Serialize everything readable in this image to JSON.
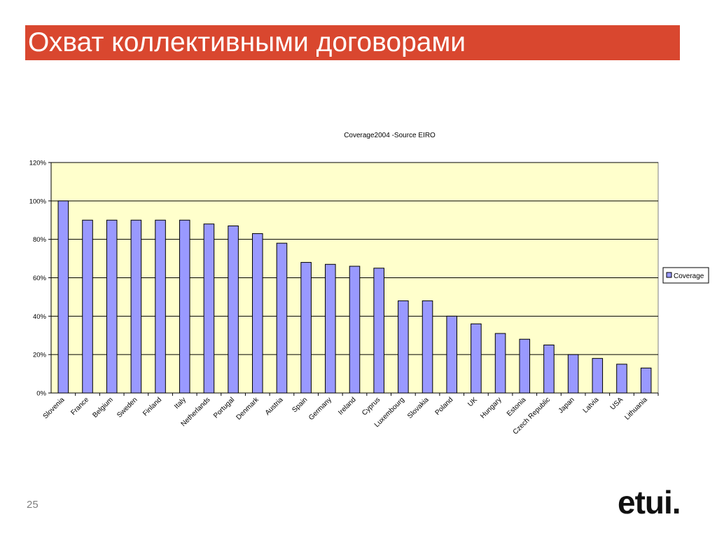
{
  "slide": {
    "title": "Охват коллективными договорами",
    "page_number": "25",
    "logo_text": "etui."
  },
  "colors": {
    "title_bar": "#d9472f",
    "plot_bg": "#ffffcc",
    "bar_fill": "#9999ff",
    "bar_stroke": "#000000",
    "grid": "#000000"
  },
  "chart_data": {
    "type": "bar",
    "title": "Coverage2004 -Source EIRO",
    "xlabel": "",
    "ylabel": "",
    "ylim": [
      0,
      1.2
    ],
    "yticks": [
      0,
      0.2,
      0.4,
      0.6,
      0.8,
      1.0,
      1.2
    ],
    "ytick_labels": [
      "0%",
      "20%",
      "40%",
      "60%",
      "80%",
      "100%",
      "120%"
    ],
    "grid": true,
    "legend_position": "right",
    "categories": [
      "Slovenia",
      "France",
      "Belgium",
      "Sweden",
      "Finland",
      "Italy",
      "Netherlands",
      "Portugal",
      "Denmark",
      "Austria",
      "Spain",
      "Germany",
      "Ireland",
      "Cyprus",
      "Luxembourg",
      "Slovakia",
      "Poland",
      "UK",
      "Hungary",
      "Estonia",
      "Czech Republic",
      "Japan",
      "Latvia",
      "USA",
      "Lithuania"
    ],
    "series": [
      {
        "name": "Coverage",
        "values": [
          1.0,
          0.9,
          0.9,
          0.9,
          0.9,
          0.9,
          0.88,
          0.87,
          0.83,
          0.78,
          0.68,
          0.67,
          0.66,
          0.65,
          0.48,
          0.48,
          0.4,
          0.36,
          0.31,
          0.28,
          0.25,
          0.2,
          0.18,
          0.15,
          0.13
        ]
      }
    ]
  }
}
